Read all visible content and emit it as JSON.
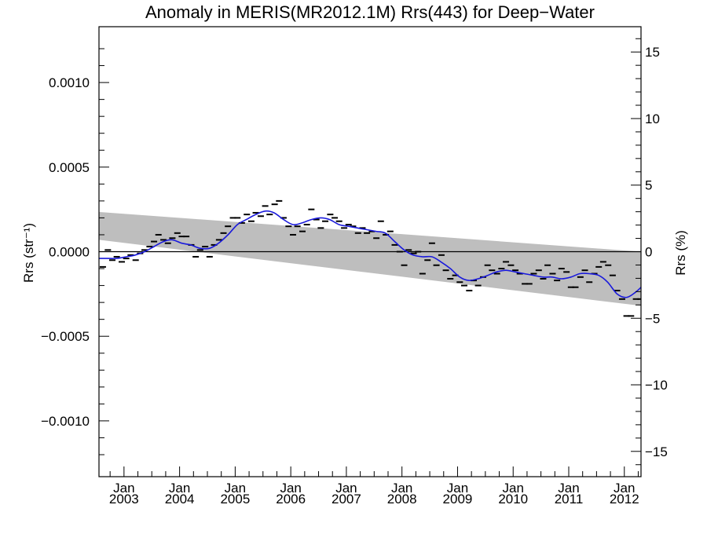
{
  "chart_data": {
    "type": "line",
    "title": "Anomaly in MERIS(MR2012.1M) Rrs(443) for Deep−Water",
    "ylabel_left": "Rrs (str⁻¹)",
    "ylabel_right": "Rrs (%)",
    "xlim": [
      2002.55,
      2012.3
    ],
    "ylim": [
      -0.00133,
      0.00133
    ],
    "ylim_right": [
      -16.9,
      16.9
    ],
    "grid": false,
    "y_ticks": [
      {
        "v": 0.001,
        "label": "0.0010"
      },
      {
        "v": 0.0005,
        "label": "0.0005"
      },
      {
        "v": 0.0,
        "label": "0.0000"
      },
      {
        "v": -0.0005,
        "label": "−0.0005"
      },
      {
        "v": -0.001,
        "label": "−0.0010"
      }
    ],
    "y_right_ticks": [
      {
        "v": 15,
        "label": "15"
      },
      {
        "v": 10,
        "label": "10"
      },
      {
        "v": 5,
        "label": "5"
      },
      {
        "v": 0,
        "label": "0"
      },
      {
        "v": -5,
        "label": "−5"
      },
      {
        "v": -10,
        "label": "−10"
      },
      {
        "v": -15,
        "label": "−15"
      }
    ],
    "x_ticks": [
      {
        "v": 2003.0,
        "month": "Jan",
        "year": "2003"
      },
      {
        "v": 2004.0,
        "month": "Jan",
        "year": "2004"
      },
      {
        "v": 2005.0,
        "month": "Jan",
        "year": "2005"
      },
      {
        "v": 2006.0,
        "month": "Jan",
        "year": "2006"
      },
      {
        "v": 2007.0,
        "month": "Jan",
        "year": "2007"
      },
      {
        "v": 2008.0,
        "month": "Jan",
        "year": "2008"
      },
      {
        "v": 2009.0,
        "month": "Jan",
        "year": "2009"
      },
      {
        "v": 2010.0,
        "month": "Jan",
        "year": "2010"
      },
      {
        "v": 2011.0,
        "month": "Jan",
        "year": "2011"
      },
      {
        "v": 2012.0,
        "month": "Jan",
        "year": "2012"
      }
    ],
    "band": {
      "color": "#bebebe",
      "upper": [
        [
          2002.55,
          0.000235
        ],
        [
          2012.3,
          0.0
        ]
      ],
      "lower": [
        [
          2002.55,
          7e-05
        ],
        [
          2012.3,
          -0.00032
        ]
      ]
    },
    "zero_line": {
      "y": 0.0,
      "color": "#000000"
    },
    "series": [
      {
        "kind": "monthly_anomaly",
        "style": "dash",
        "color": "#000000",
        "points": [
          [
            2002.62,
            -9e-05
          ],
          [
            2002.71,
            1e-05
          ],
          [
            2002.79,
            -5e-05
          ],
          [
            2002.87,
            -3e-05
          ],
          [
            2002.96,
            -6e-05
          ],
          [
            2003.04,
            -4e-05
          ],
          [
            2003.12,
            -2e-05
          ],
          [
            2003.21,
            -5e-05
          ],
          [
            2003.29,
            -1e-05
          ],
          [
            2003.37,
            1e-05
          ],
          [
            2003.46,
            3e-05
          ],
          [
            2003.54,
            6e-05
          ],
          [
            2003.62,
            0.0001
          ],
          [
            2003.71,
            7e-05
          ],
          [
            2003.79,
            5e-05
          ],
          [
            2003.87,
            8e-05
          ],
          [
            2003.96,
            0.00011
          ],
          [
            2004.04,
            9e-05
          ],
          [
            2004.12,
            9e-05
          ],
          [
            2004.21,
            4e-05
          ],
          [
            2004.29,
            -3e-05
          ],
          [
            2004.37,
            1e-05
          ],
          [
            2004.46,
            3e-05
          ],
          [
            2004.54,
            -3e-05
          ],
          [
            2004.62,
            4e-05
          ],
          [
            2004.71,
            7e-05
          ],
          [
            2004.79,
            0.00011
          ],
          [
            2004.87,
            0.00015
          ],
          [
            2004.96,
            0.0002
          ],
          [
            2005.04,
            0.0002
          ],
          [
            2005.12,
            0.00017
          ],
          [
            2005.21,
            0.00022
          ],
          [
            2005.29,
            0.00018
          ],
          [
            2005.37,
            0.00023
          ],
          [
            2005.46,
            0.00021
          ],
          [
            2005.54,
            0.00027
          ],
          [
            2005.62,
            0.00022
          ],
          [
            2005.71,
            0.00028
          ],
          [
            2005.79,
            0.0003
          ],
          [
            2005.87,
            0.0002
          ],
          [
            2005.96,
            0.00015
          ],
          [
            2006.04,
            0.0001
          ],
          [
            2006.12,
            0.00015
          ],
          [
            2006.21,
            0.00012
          ],
          [
            2006.29,
            0.00016
          ],
          [
            2006.37,
            0.00025
          ],
          [
            2006.46,
            0.00019
          ],
          [
            2006.54,
            0.00014
          ],
          [
            2006.62,
            0.00018
          ],
          [
            2006.71,
            0.00022
          ],
          [
            2006.79,
            0.0002
          ],
          [
            2006.87,
            0.00018
          ],
          [
            2006.96,
            0.00014
          ],
          [
            2007.04,
            0.00016
          ],
          [
            2007.12,
            0.00015
          ],
          [
            2007.21,
            0.00011
          ],
          [
            2007.29,
            0.00014
          ],
          [
            2007.37,
            0.00011
          ],
          [
            2007.46,
            0.00012
          ],
          [
            2007.54,
            8e-05
          ],
          [
            2007.62,
            0.00018
          ],
          [
            2007.71,
            0.0001
          ],
          [
            2007.79,
            0.00012
          ],
          [
            2007.87,
            4e-05
          ],
          [
            2007.96,
            0.0
          ],
          [
            2008.04,
            -8e-05
          ],
          [
            2008.12,
            1e-05
          ],
          [
            2008.21,
            -1e-05
          ],
          [
            2008.29,
            0.0
          ],
          [
            2008.37,
            -0.00013
          ],
          [
            2008.46,
            -5e-05
          ],
          [
            2008.54,
            5e-05
          ],
          [
            2008.62,
            -8e-05
          ],
          [
            2008.71,
            -2e-05
          ],
          [
            2008.79,
            -0.00011
          ],
          [
            2008.87,
            -0.00016
          ],
          [
            2008.96,
            -0.00014
          ],
          [
            2009.04,
            -0.00018
          ],
          [
            2009.12,
            -0.0002
          ],
          [
            2009.21,
            -0.00023
          ],
          [
            2009.29,
            -0.00017
          ],
          [
            2009.37,
            -0.0002
          ],
          [
            2009.46,
            -0.00015
          ],
          [
            2009.54,
            -8e-05
          ],
          [
            2009.62,
            -0.00011
          ],
          [
            2009.71,
            -0.00013
          ],
          [
            2009.79,
            -0.0001
          ],
          [
            2009.87,
            -6e-05
          ],
          [
            2009.96,
            -8e-05
          ],
          [
            2010.04,
            -0.00011
          ],
          [
            2010.12,
            -0.00013
          ],
          [
            2010.21,
            -0.00019
          ],
          [
            2010.29,
            -0.00019
          ],
          [
            2010.37,
            -0.00013
          ],
          [
            2010.46,
            -0.00011
          ],
          [
            2010.54,
            -0.00016
          ],
          [
            2010.62,
            -8e-05
          ],
          [
            2010.71,
            -0.00013
          ],
          [
            2010.79,
            -0.00017
          ],
          [
            2010.87,
            -0.0001
          ],
          [
            2010.96,
            -0.00012
          ],
          [
            2011.04,
            -0.00021
          ],
          [
            2011.12,
            -0.00021
          ],
          [
            2011.21,
            -0.00015
          ],
          [
            2011.29,
            -0.00011
          ],
          [
            2011.37,
            -0.00018
          ],
          [
            2011.46,
            -0.00013
          ],
          [
            2011.54,
            -9e-05
          ],
          [
            2011.62,
            -6e-05
          ],
          [
            2011.71,
            -8e-05
          ],
          [
            2011.79,
            -0.00014
          ],
          [
            2011.87,
            -0.00023
          ],
          [
            2011.96,
            -0.00028
          ],
          [
            2012.04,
            -0.00038
          ],
          [
            2012.12,
            -0.00038
          ],
          [
            2012.21,
            -0.00028
          ],
          [
            2012.29,
            -0.00028
          ],
          [
            2012.37,
            -0.00022
          ],
          [
            2012.46,
            -0.00017
          ],
          [
            2012.54,
            -0.00021
          ],
          [
            2012.62,
            -0.00023
          ]
        ]
      },
      {
        "kind": "smoothed",
        "style": "line",
        "color": "#1a1adc",
        "points": [
          [
            2002.55,
            -4e-05
          ],
          [
            2002.72,
            -4e-05
          ],
          [
            2002.87,
            -4e-05
          ],
          [
            2003.04,
            -3e-05
          ],
          [
            2003.2,
            -2e-05
          ],
          [
            2003.37,
            0.0
          ],
          [
            2003.54,
            3e-05
          ],
          [
            2003.71,
            6e-05
          ],
          [
            2003.87,
            7e-05
          ],
          [
            2004.04,
            5e-05
          ],
          [
            2004.2,
            4e-05
          ],
          [
            2004.37,
            2e-05
          ],
          [
            2004.54,
            2e-05
          ],
          [
            2004.7,
            5e-05
          ],
          [
            2004.87,
            0.0001
          ],
          [
            2005.04,
            0.00016
          ],
          [
            2005.2,
            0.00019
          ],
          [
            2005.37,
            0.00022
          ],
          [
            2005.54,
            0.00024
          ],
          [
            2005.7,
            0.00023
          ],
          [
            2005.87,
            0.00019
          ],
          [
            2006.04,
            0.00016
          ],
          [
            2006.2,
            0.00017
          ],
          [
            2006.37,
            0.00019
          ],
          [
            2006.54,
            0.0002
          ],
          [
            2006.7,
            0.00019
          ],
          [
            2006.87,
            0.00016
          ],
          [
            2007.04,
            0.00015
          ],
          [
            2007.2,
            0.00014
          ],
          [
            2007.37,
            0.00013
          ],
          [
            2007.54,
            0.00012
          ],
          [
            2007.7,
            0.00011
          ],
          [
            2007.87,
            6e-05
          ],
          [
            2008.04,
            1e-05
          ],
          [
            2008.2,
            -2e-05
          ],
          [
            2008.37,
            -3e-05
          ],
          [
            2008.54,
            -3e-05
          ],
          [
            2008.7,
            -6e-05
          ],
          [
            2008.87,
            -0.0001
          ],
          [
            2009.04,
            -0.00015
          ],
          [
            2009.2,
            -0.00017
          ],
          [
            2009.37,
            -0.00016
          ],
          [
            2009.54,
            -0.00014
          ],
          [
            2009.7,
            -0.00012
          ],
          [
            2009.87,
            -0.00011
          ],
          [
            2010.04,
            -0.00012
          ],
          [
            2010.2,
            -0.00013
          ],
          [
            2010.37,
            -0.00014
          ],
          [
            2010.54,
            -0.00015
          ],
          [
            2010.7,
            -0.00015
          ],
          [
            2010.87,
            -0.00016
          ],
          [
            2011.04,
            -0.00015
          ],
          [
            2011.2,
            -0.00013
          ],
          [
            2011.37,
            -0.00013
          ],
          [
            2011.54,
            -0.00014
          ],
          [
            2011.7,
            -0.00018
          ],
          [
            2011.87,
            -0.00025
          ],
          [
            2012.04,
            -0.00027
          ],
          [
            2012.2,
            -0.00024
          ],
          [
            2012.37,
            -0.00019
          ],
          [
            2012.54,
            -0.00015
          ],
          [
            2012.62,
            -0.00012
          ]
        ]
      }
    ]
  }
}
